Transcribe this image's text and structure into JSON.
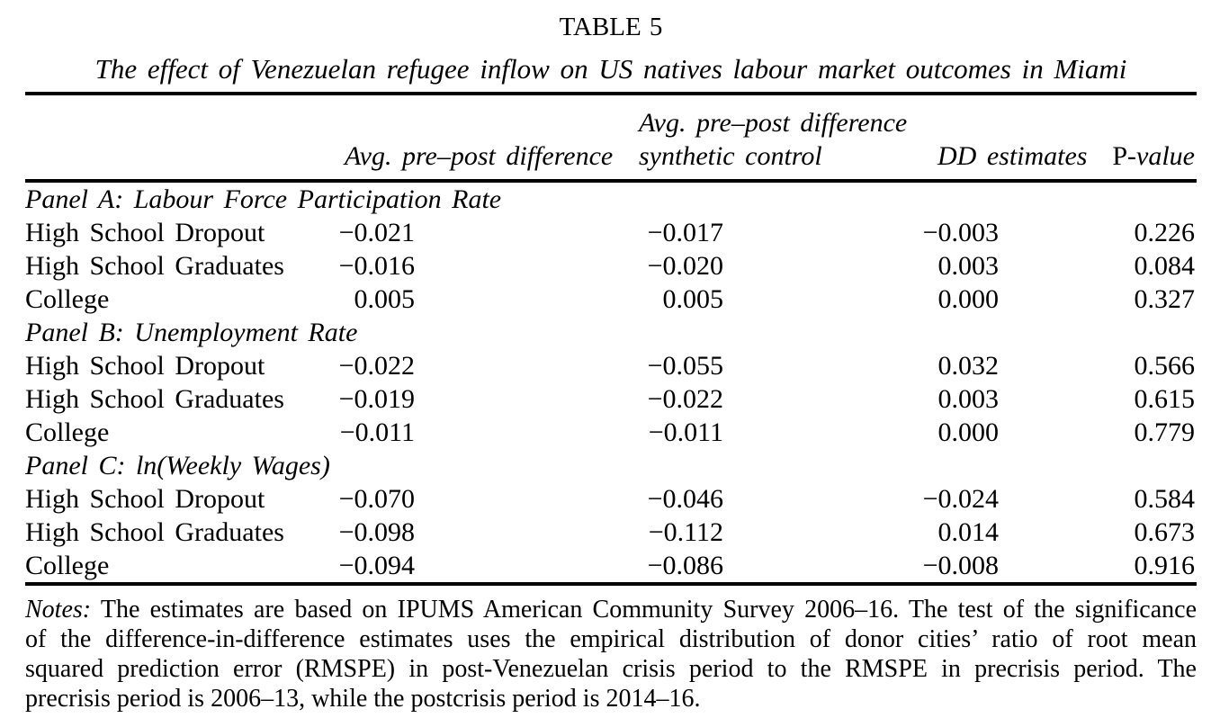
{
  "table": {
    "label": "TABLE 5",
    "caption": "The effect of Venezuelan refugee inflow on US natives labour market outcomes in Miami",
    "columns": {
      "avg_diff": "Avg. pre–post difference",
      "avg_diff_synth_line1": "Avg. pre–post difference",
      "avg_diff_synth_line2": "synthetic control",
      "dd_estimates": "DD estimates",
      "p_prefix": "P",
      "p_suffix": "-value"
    },
    "panels": [
      {
        "label": "Panel A: Labour Force Participation Rate",
        "rows": [
          {
            "label": "High School Dropout",
            "values": [
              "−0.021",
              "−0.017",
              "−0.003",
              "0.226"
            ]
          },
          {
            "label": "High School Graduates",
            "values": [
              "−0.016",
              "−0.020",
              "0.003",
              "0.084"
            ]
          },
          {
            "label": "College",
            "values": [
              "0.005",
              "0.005",
              "0.000",
              "0.327"
            ]
          }
        ]
      },
      {
        "label": "Panel B: Unemployment Rate",
        "rows": [
          {
            "label": "High School Dropout",
            "values": [
              "−0.022",
              "−0.055",
              "0.032",
              "0.566"
            ]
          },
          {
            "label": "High School Graduates",
            "values": [
              "−0.019",
              "−0.022",
              "0.003",
              "0.615"
            ]
          },
          {
            "label": "College",
            "values": [
              "−0.011",
              "−0.011",
              "0.000",
              "0.779"
            ]
          }
        ]
      },
      {
        "label": "Panel C: ln(Weekly Wages)",
        "rows": [
          {
            "label": "High School Dropout",
            "values": [
              "−0.070",
              "−0.046",
              "−0.024",
              "0.584"
            ]
          },
          {
            "label": "High School Graduates",
            "values": [
              "−0.098",
              "−0.112",
              "0.014",
              "0.673"
            ]
          },
          {
            "label": "College",
            "values": [
              "−0.094",
              "−0.086",
              "−0.008",
              "0.916"
            ]
          }
        ]
      }
    ],
    "notes": {
      "label": "Notes:",
      "lines": [
        "The estimates are based on IPUMS American Community Survey 2006–16. The test of the significance",
        "of the difference-in-difference estimates uses the empirical distribution of donor cities’ ratio of root mean",
        "squared prediction error (RMSPE) in post-Venezuelan crisis period to the RMSPE in precrisis period. The",
        "precrisis period is 2006–13, while the postcrisis period is 2014–16."
      ]
    }
  }
}
